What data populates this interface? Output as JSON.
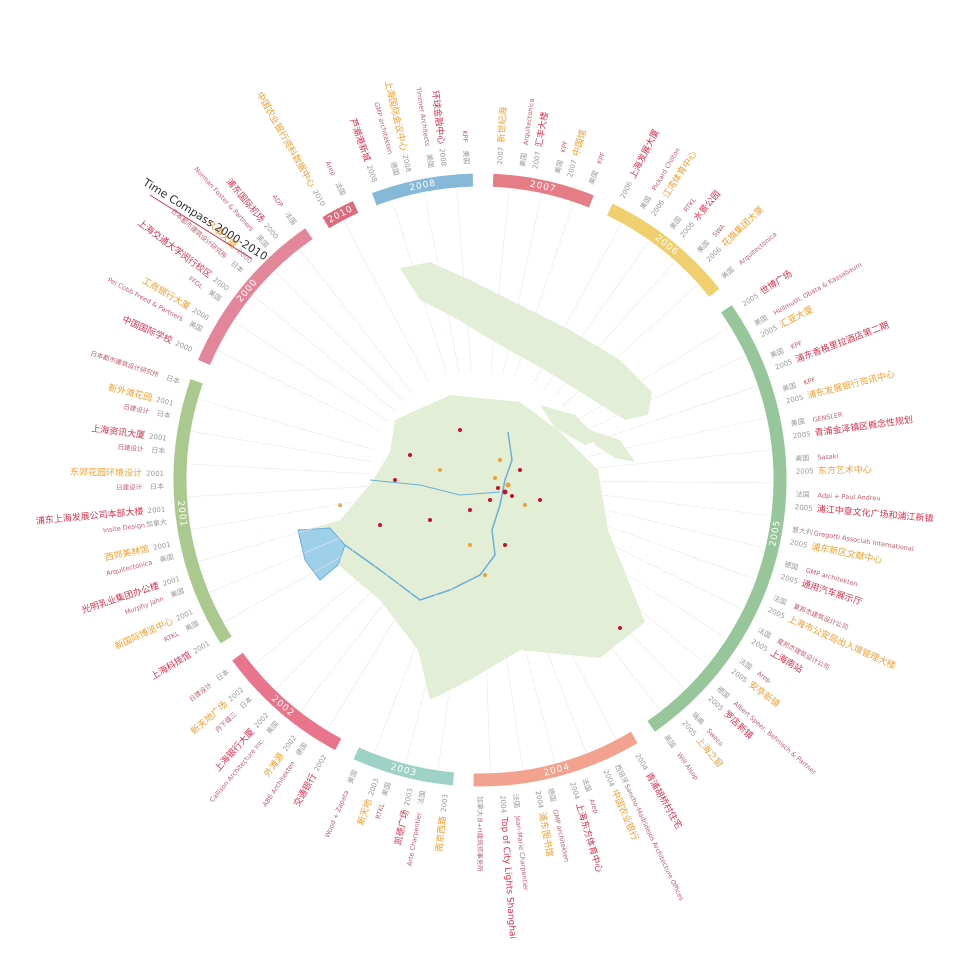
{
  "title": "Time Compass 2000-2010",
  "entries": [
    {
      "year": "2000",
      "name": "浦东国际机场",
      "architect": "ADP",
      "country": "法国"
    },
    {
      "year": "2000",
      "name": "久事大厦",
      "architect": "Norman Foster & Partners",
      "country": "英国"
    },
    {
      "year": "2000",
      "name": "上海交通大学闵行校区",
      "architect": "日本都市建筑设计研究所",
      "country": "日本"
    },
    {
      "year": "2000",
      "name": "工商银行大厦",
      "architect": "FFGL",
      "country": "美国"
    },
    {
      "year": "2000",
      "name": "中国国际学校",
      "architect": "Pei Cobb Freed & Partners",
      "country": "美国"
    },
    {
      "year": "2001",
      "name": "新外滩花园",
      "architect": "日本都市建筑设计研究所",
      "country": "日本"
    },
    {
      "year": "2001",
      "name": "上海资讯大厦",
      "architect": "日建设计",
      "country": "日本"
    },
    {
      "year": "2001",
      "name": "东郊花园环境设计",
      "architect": "日建设计",
      "country": "日本"
    },
    {
      "year": "2001",
      "name": "浦东上海发展公司本部大楼",
      "architect": "日建设计",
      "country": "日本"
    },
    {
      "year": "2001",
      "name": "西郊美林馆",
      "architect": "Insite Design",
      "country": "加拿大"
    },
    {
      "year": "2001",
      "name": "光明乳业集团办公楼",
      "architect": "Arquitectonica",
      "country": "美国"
    },
    {
      "year": "2001",
      "name": "新国际博览中心",
      "architect": "Murphy Jahn",
      "country": "美国"
    },
    {
      "year": "2001",
      "name": "上海科技馆",
      "architect": "RTKL",
      "country": "美国"
    },
    {
      "year": "2002",
      "name": "新天地广场",
      "architect": "日建设计",
      "country": "日本"
    },
    {
      "year": "2002",
      "name": "上海银行大厦",
      "architect": "丹下健三",
      "country": "日本"
    },
    {
      "year": "2002",
      "name": "外滩源",
      "architect": "Callison Architecture Inc.",
      "country": "美国"
    },
    {
      "year": "2002",
      "name": "交通银行",
      "architect": "ABB Architekten",
      "country": "德国"
    },
    {
      "year": "2003",
      "name": "新天地",
      "architect": "Wood + Zapata",
      "country": "美国"
    },
    {
      "year": "2003",
      "name": "凯德广场",
      "architect": "RTKL",
      "country": "美国"
    },
    {
      "year": "2003",
      "name": "南京西路",
      "architect": "Arte Charpentier",
      "country": "法国"
    },
    {
      "year": "2004",
      "name": "Top of City Lights Shanghai",
      "architect": "B+H建筑师事务所",
      "country": "加拿大"
    },
    {
      "year": "2004",
      "name": "浦东图书馆",
      "architect": "Jean-Marie Charpentier",
      "country": "法国"
    },
    {
      "year": "2004",
      "name": "上海东方体育中心",
      "architect": "GMP architekten",
      "country": "德国"
    },
    {
      "year": "2004",
      "name": "中国农业银行",
      "architect": "Arep",
      "country": "法国"
    },
    {
      "year": "2004",
      "name": "青浦胡桥村住宅",
      "architect": "Sancho-Madridejos Architecture Offices",
      "country": "西班牙"
    },
    {
      "year": "2005",
      "name": "上海之窗",
      "architect": "Will Alsop",
      "country": "英国"
    },
    {
      "year": "2005",
      "name": "罗店新镇",
      "architect": "Sweco",
      "country": "瑞典"
    },
    {
      "year": "2005",
      "name": "安亭新镇",
      "architect": "Albert Speer, Behnisch & Partner",
      "country": "德国"
    },
    {
      "year": "2005",
      "name": "上海南站",
      "architect": "Arep",
      "country": "法国"
    },
    {
      "year": "2005",
      "name": "上海市公安局出入境管理大楼",
      "architect": "夏邦杰建筑设计公司",
      "country": "法国"
    },
    {
      "year": "2005",
      "name": "通用汽车展示厅",
      "architect": "夏邦杰建筑设计公司",
      "country": "法国"
    },
    {
      "year": "2005",
      "name": "浦东新区文献中心",
      "architect": "GMP architekten",
      "country": "德国"
    },
    {
      "year": "2005",
      "name": "浦江中意文化广场和浦江新镇",
      "architect": "Gregotti Associati International",
      "country": "意大利"
    },
    {
      "year": "2005",
      "name": "东方艺术中心",
      "architect": "Adpi + Paul Andreu",
      "country": "法国"
    },
    {
      "year": "2005",
      "name": "青浦金泽镇区概念性规划",
      "architect": "Sasaki",
      "country": "美国"
    },
    {
      "year": "2005",
      "name": "浦东发展银行资讯中心",
      "architect": "GENSLER",
      "country": "美国"
    },
    {
      "year": "2005",
      "name": "浦东香格里拉酒店第二期",
      "architect": "KPF",
      "country": "美国"
    },
    {
      "year": "2005",
      "name": "汇亚大厦",
      "architect": "KPF",
      "country": "美国"
    },
    {
      "year": "2005",
      "name": "世博广场",
      "architect": "Hellmuth, Obata & Kassabaum",
      "country": "美国"
    },
    {
      "year": "2006",
      "name": "花旗集团大厦",
      "architect": "Arquitectonica",
      "country": "美国"
    },
    {
      "year": "2006",
      "name": "水景公园",
      "architect": "SWA",
      "country": "美国"
    },
    {
      "year": "2006",
      "name": "江湾体育中心",
      "architect": "RTKL",
      "country": "美国"
    },
    {
      "year": "2006",
      "name": "上海发展大厦",
      "architect": "Pickard Chilton",
      "country": "美国"
    },
    {
      "year": "2007",
      "name": "中国馆",
      "architect": "KPF",
      "country": "美国"
    },
    {
      "year": "2007",
      "name": "汇丰大楼",
      "architect": "KPF",
      "country": "美国"
    },
    {
      "year": "2007",
      "name": "新世纪海",
      "architect": "Arquitectonica",
      "country": "美国"
    },
    {
      "year": "2008",
      "name": "环球金融中心",
      "architect": "KPF",
      "country": "美国"
    },
    {
      "year": "2008",
      "name": "上海国际会议中心",
      "architect": "Timmer Architects",
      "country": "美国"
    },
    {
      "year": "2008",
      "name": "芦潮港新城",
      "architect": "GMP architekten",
      "country": "德国"
    },
    {
      "year": "2010",
      "name": "中国农业银行资料数据中心",
      "architect": "Arep",
      "country": "法国"
    }
  ]
}
